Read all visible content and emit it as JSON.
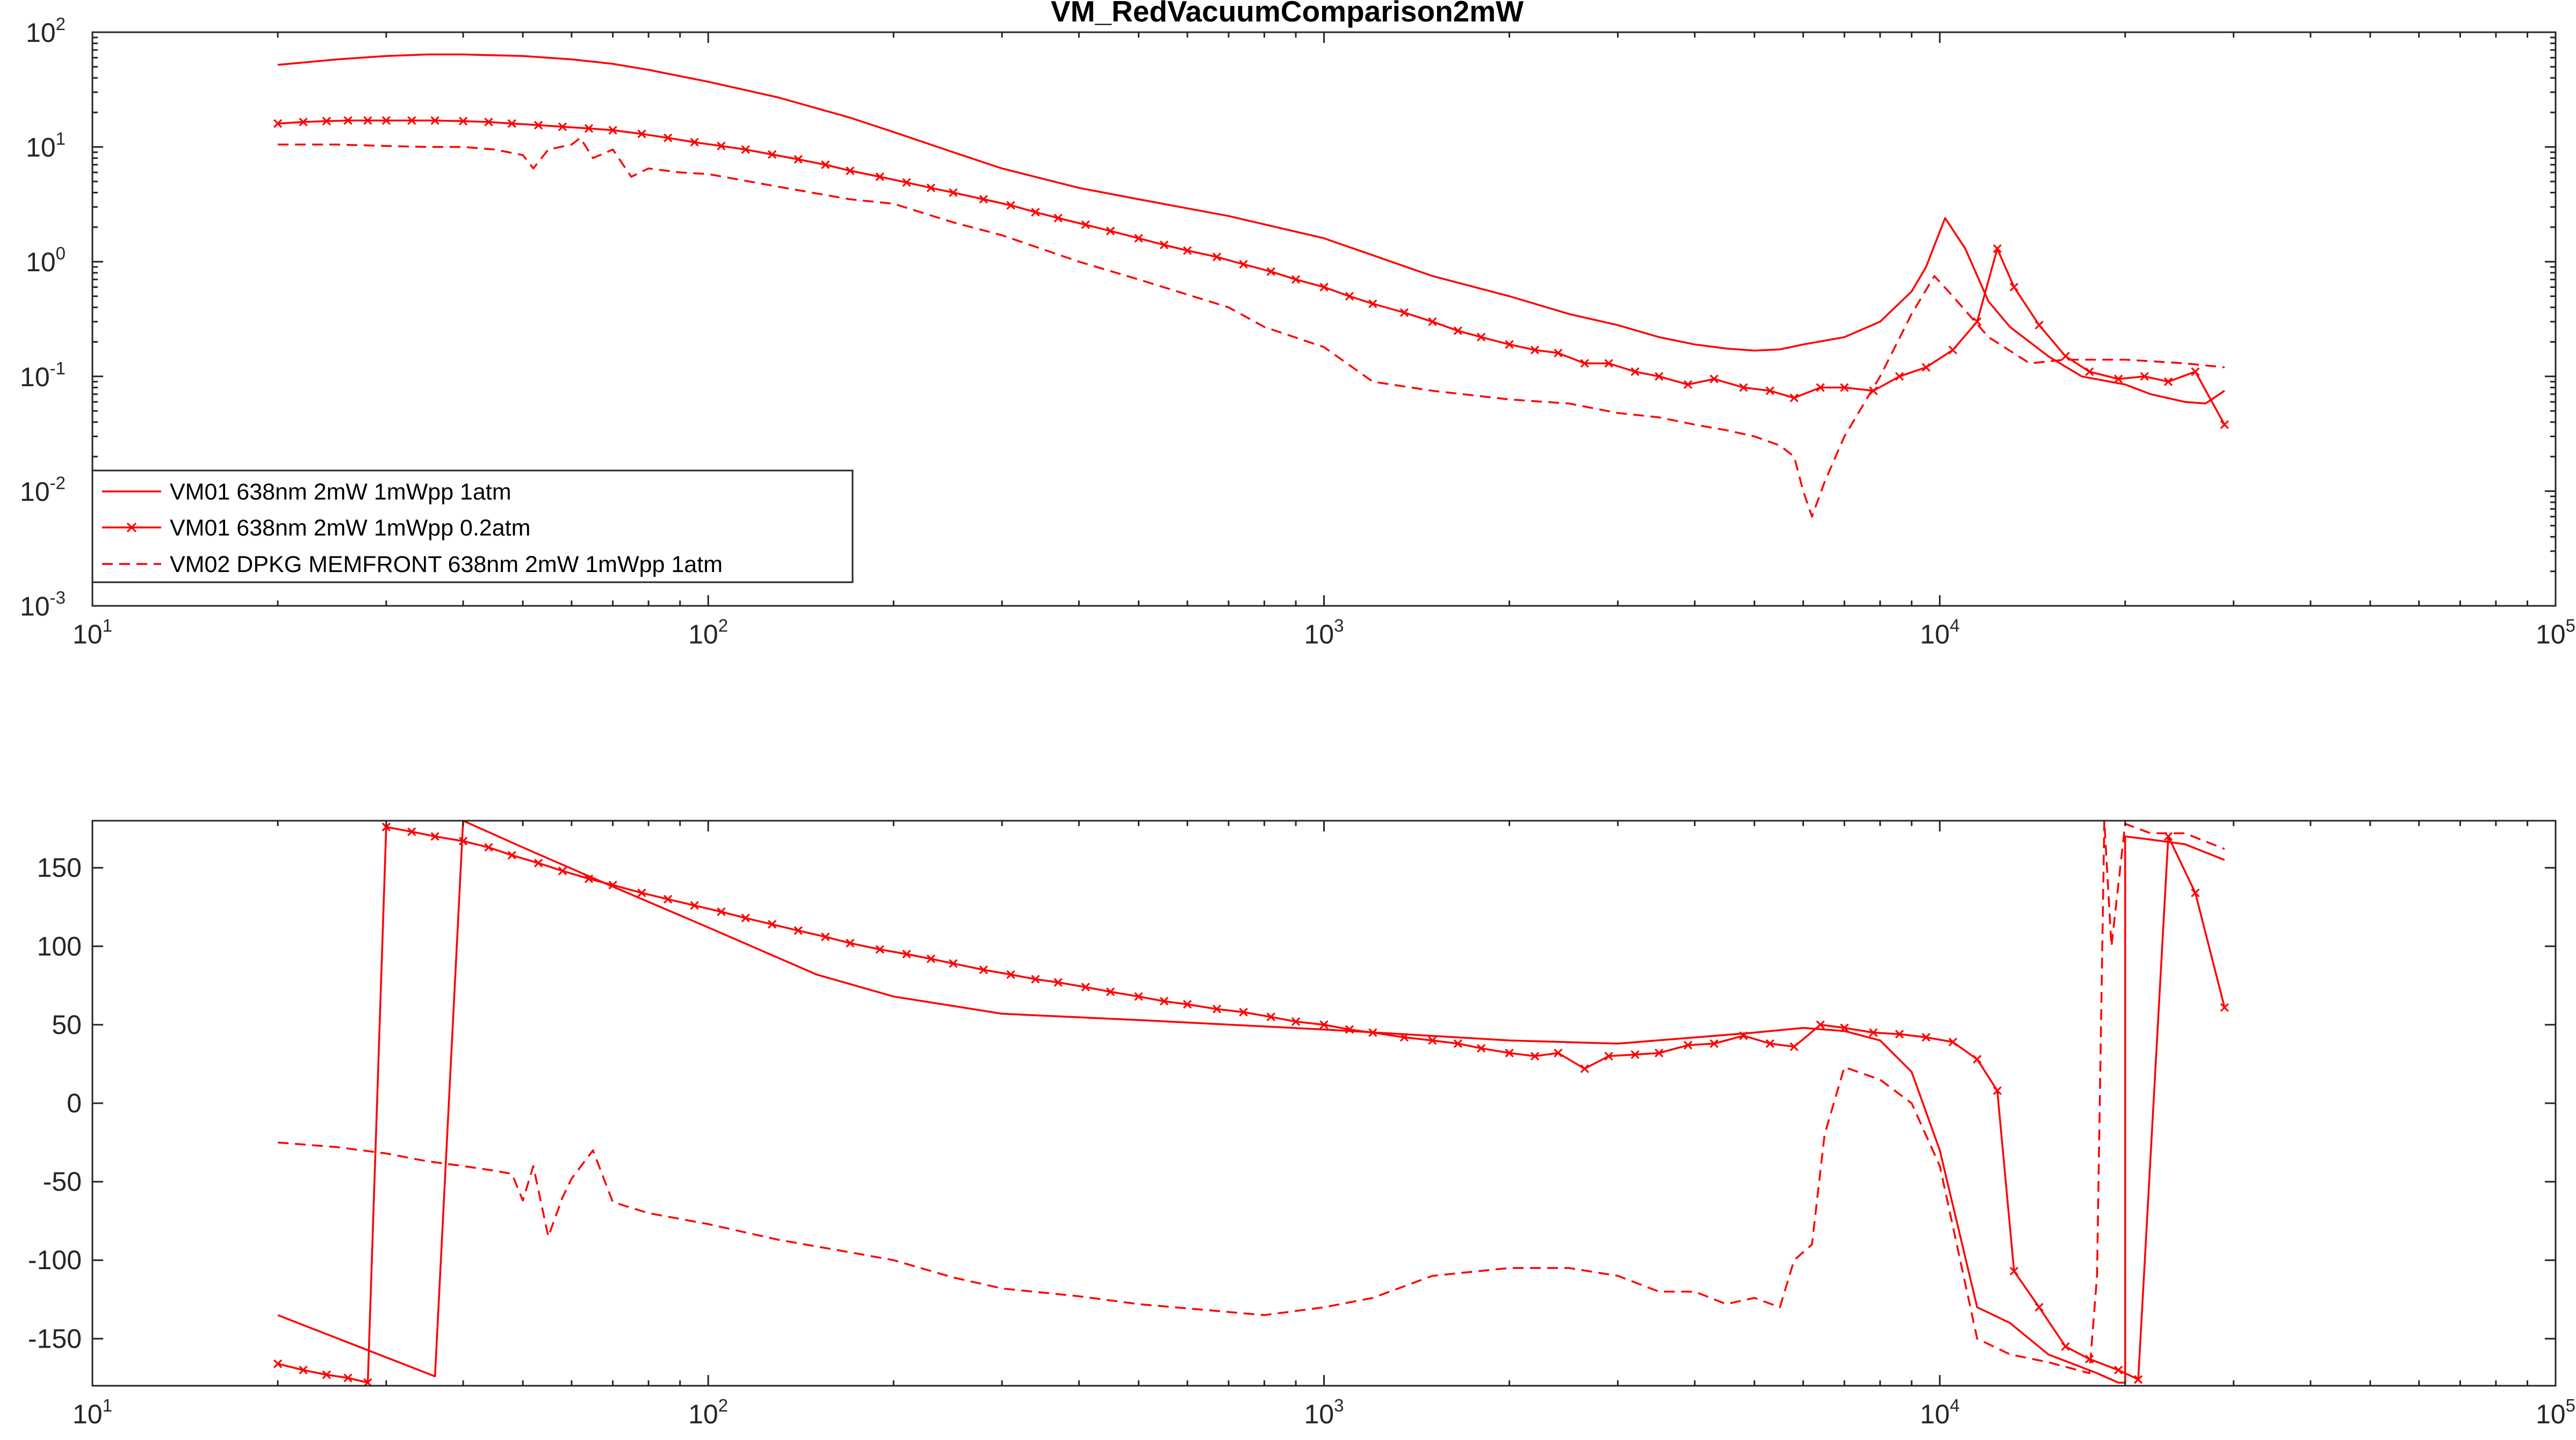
{
  "chart_data": [
    {
      "type": "line",
      "title": "VM_RedVacuumComparison2mW",
      "xscale": "log",
      "yscale": "log",
      "xlim": [
        10,
        100000
      ],
      "ylim": [
        0.001,
        100
      ],
      "x_ticks": [
        1,
        2,
        3,
        4,
        5
      ],
      "y_ticks": [
        -3,
        -2,
        -1,
        0,
        1,
        2
      ],
      "tick_base": "10",
      "legend_position": "lower-left",
      "grid": false,
      "color": "#ff0000",
      "series": [
        {
          "name": "VM01 638nm 2mW 1mWpp 1atm",
          "style": "solid",
          "marker": "none",
          "x": [
            20,
            25,
            30,
            35,
            40,
            50,
            60,
            70,
            80,
            100,
            130,
            170,
            200,
            250,
            300,
            400,
            500,
            700,
            1000,
            1500,
            2000,
            2500,
            3000,
            3500,
            4000,
            4500,
            5000,
            5500,
            6000,
            7000,
            8000,
            9000,
            9500,
            10200,
            11000,
            12000,
            13000,
            15000,
            17000,
            20000,
            22000,
            25000,
            27000,
            29000
          ],
          "y": [
            52,
            58,
            62,
            64,
            64,
            62,
            58,
            53,
            47,
            37,
            27,
            18,
            13.5,
            9,
            6.5,
            4.4,
            3.5,
            2.5,
            1.6,
            0.75,
            0.5,
            0.35,
            0.28,
            0.22,
            0.19,
            0.175,
            0.168,
            0.172,
            0.19,
            0.22,
            0.3,
            0.55,
            0.9,
            2.4,
            1.3,
            0.45,
            0.27,
            0.15,
            0.1,
            0.085,
            0.07,
            0.06,
            0.058,
            0.075
          ]
        },
        {
          "name": "VM01 638nm 2mW 1mWpp 0.2atm",
          "style": "solid",
          "marker": "x",
          "x": [
            20,
            22,
            24,
            26,
            28,
            30,
            33,
            36,
            40,
            44,
            48,
            53,
            58,
            64,
            70,
            78,
            86,
            95,
            105,
            115,
            127,
            140,
            155,
            170,
            190,
            210,
            230,
            250,
            280,
            310,
            340,
            370,
            410,
            450,
            500,
            550,
            600,
            670,
            740,
            820,
            900,
            1000,
            1100,
            1200,
            1350,
            1500,
            1650,
            1800,
            2000,
            2200,
            2400,
            2650,
            2900,
            3200,
            3500,
            3900,
            4300,
            4800,
            5300,
            5800,
            6400,
            7000,
            7800,
            8600,
            9500,
            10500,
            11500,
            12400,
            13200,
            14500,
            16000,
            17500,
            19500,
            21500,
            23500,
            26000,
            29000
          ],
          "y": [
            16,
            16.5,
            16.8,
            17,
            17,
            17,
            17,
            17,
            16.8,
            16.5,
            16,
            15.5,
            15,
            14.5,
            14,
            13,
            12,
            11,
            10.2,
            9.5,
            8.6,
            7.8,
            7,
            6.2,
            5.5,
            4.9,
            4.4,
            4,
            3.5,
            3.1,
            2.7,
            2.4,
            2.1,
            1.85,
            1.6,
            1.4,
            1.25,
            1.1,
            0.95,
            0.82,
            0.7,
            0.6,
            0.5,
            0.43,
            0.36,
            0.3,
            0.25,
            0.22,
            0.19,
            0.17,
            0.16,
            0.13,
            0.13,
            0.11,
            0.1,
            0.085,
            0.095,
            0.08,
            0.075,
            0.065,
            0.08,
            0.08,
            0.075,
            0.1,
            0.12,
            0.17,
            0.3,
            1.3,
            0.6,
            0.28,
            0.15,
            0.11,
            0.095,
            0.1,
            0.09,
            0.11,
            0.038
          ]
        },
        {
          "name": "VM02 DPKG MEMFRONT 638nm 2mW 1mWpp 1atm",
          "style": "dashed",
          "marker": "none",
          "x": [
            20,
            25,
            30,
            35,
            40,
            45,
            50,
            52,
            55,
            60,
            62,
            65,
            70,
            75,
            80,
            90,
            100,
            130,
            170,
            200,
            250,
            300,
            400,
            500,
            700,
            800,
            1000,
            1200,
            1500,
            2000,
            2500,
            3000,
            3500,
            4000,
            4500,
            5000,
            5500,
            5800,
            6000,
            6200,
            6500,
            7000,
            8000,
            9000,
            9800,
            10500,
            12000,
            14000,
            16000,
            20000,
            25000,
            29000
          ],
          "y": [
            10.5,
            10.5,
            10.2,
            10,
            10,
            9.5,
            8.5,
            6.5,
            9.5,
            10.5,
            12,
            8,
            9.5,
            5.5,
            6.5,
            6,
            5.8,
            4.5,
            3.5,
            3.2,
            2.2,
            1.7,
            1,
            0.7,
            0.4,
            0.27,
            0.18,
            0.09,
            0.075,
            0.063,
            0.058,
            0.048,
            0.044,
            0.038,
            0.034,
            0.03,
            0.025,
            0.02,
            0.01,
            0.006,
            0.012,
            0.03,
            0.1,
            0.35,
            0.75,
            0.5,
            0.22,
            0.13,
            0.14,
            0.14,
            0.13,
            0.12
          ]
        }
      ]
    },
    {
      "type": "line",
      "xscale": "log",
      "xlim": [
        10,
        100000
      ],
      "ylim": [
        -180,
        180
      ],
      "x_ticks": [
        1,
        2,
        3,
        4,
        5
      ],
      "tick_base": "10",
      "y_ticks": [
        -150,
        -100,
        -50,
        0,
        50,
        100,
        150
      ],
      "y_tick_labels": [
        "-150",
        "-100",
        "-50",
        "0",
        "50",
        "100",
        "150"
      ],
      "grid": false,
      "color": "#ff0000",
      "series": [
        {
          "style": "solid",
          "marker": "none",
          "x": [
            20,
            36,
            36,
            40,
            40,
            50,
            70,
            100,
            150,
            200,
            300,
            500,
            1000,
            2000,
            3000,
            5000,
            6000,
            7000,
            8000,
            9000,
            10000,
            11500,
            13000,
            15000,
            18000,
            19500,
            20000,
            20000,
            22000,
            25000,
            29000
          ],
          "y": [
            -135,
            -174,
            -174,
            180,
            180,
            163,
            138,
            112,
            82,
            68,
            57,
            53,
            47,
            40,
            38,
            45,
            48,
            46,
            40,
            20,
            -30,
            -130,
            -140,
            -160,
            -172,
            -178,
            -178,
            170,
            168,
            165,
            155
          ]
        },
        {
          "style": "solid",
          "marker": "x",
          "x": [
            20,
            22,
            24,
            26,
            28,
            30,
            33,
            36,
            40,
            44,
            48,
            53,
            58,
            64,
            70,
            78,
            86,
            95,
            105,
            115,
            127,
            140,
            155,
            170,
            190,
            210,
            230,
            250,
            280,
            310,
            340,
            370,
            410,
            450,
            500,
            550,
            600,
            670,
            740,
            820,
            900,
            1000,
            1100,
            1200,
            1350,
            1500,
            1650,
            1800,
            2000,
            2200,
            2400,
            2650,
            2900,
            3200,
            3500,
            3900,
            4300,
            4800,
            5300,
            5800,
            6400,
            7000,
            7800,
            8600,
            9500,
            10500,
            11500,
            12400,
            13200,
            14500,
            16000,
            17500,
            19500,
            21000,
            23500,
            26000,
            29000
          ],
          "y": [
            -166,
            -170,
            -173,
            -175,
            -178,
            176,
            173,
            170,
            167,
            163,
            158,
            153,
            148,
            143,
            139,
            134,
            130,
            126,
            122,
            118,
            114,
            110,
            106,
            102,
            98,
            95,
            92,
            89,
            85,
            82,
            79,
            77,
            74,
            71,
            68,
            65,
            63,
            60,
            58,
            55,
            52,
            50,
            47,
            45,
            42,
            40,
            38,
            35,
            32,
            30,
            32,
            22,
            30,
            31,
            32,
            37,
            38,
            43,
            38,
            36,
            50,
            48,
            45,
            44,
            42,
            39,
            28,
            8,
            -107,
            -130,
            -155,
            -163,
            -170,
            -176,
            170,
            134,
            61
          ]
        },
        {
          "style": "dashed",
          "marker": "none",
          "x": [
            20,
            25,
            30,
            35,
            40,
            45,
            48,
            50,
            52,
            55,
            58,
            60,
            65,
            70,
            80,
            100,
            130,
            170,
            200,
            250,
            300,
            400,
            500,
            700,
            800,
            1000,
            1200,
            1500,
            2000,
            2500,
            3000,
            3500,
            4000,
            4500,
            5000,
            5500,
            5800,
            6200,
            6500,
            7000,
            8000,
            9000,
            10000,
            11500,
            13000,
            15000,
            17500,
            18000,
            18500,
            19000,
            20000,
            22000,
            25000,
            29000
          ],
          "y": [
            -25,
            -28,
            -32,
            -37,
            -40,
            -43,
            -45,
            -62,
            -40,
            -85,
            -60,
            -48,
            -30,
            -63,
            -70,
            -77,
            -87,
            -95,
            -100,
            -111,
            -118,
            -123,
            -128,
            -133,
            -135,
            -130,
            -124,
            -110,
            -105,
            -105,
            -110,
            -120,
            -120,
            -128,
            -124,
            -130,
            -100,
            -90,
            -20,
            23,
            15,
            0,
            -40,
            -150,
            -160,
            -165,
            -172,
            -110,
            180,
            100,
            178,
            172,
            172,
            162
          ]
        }
      ]
    }
  ]
}
